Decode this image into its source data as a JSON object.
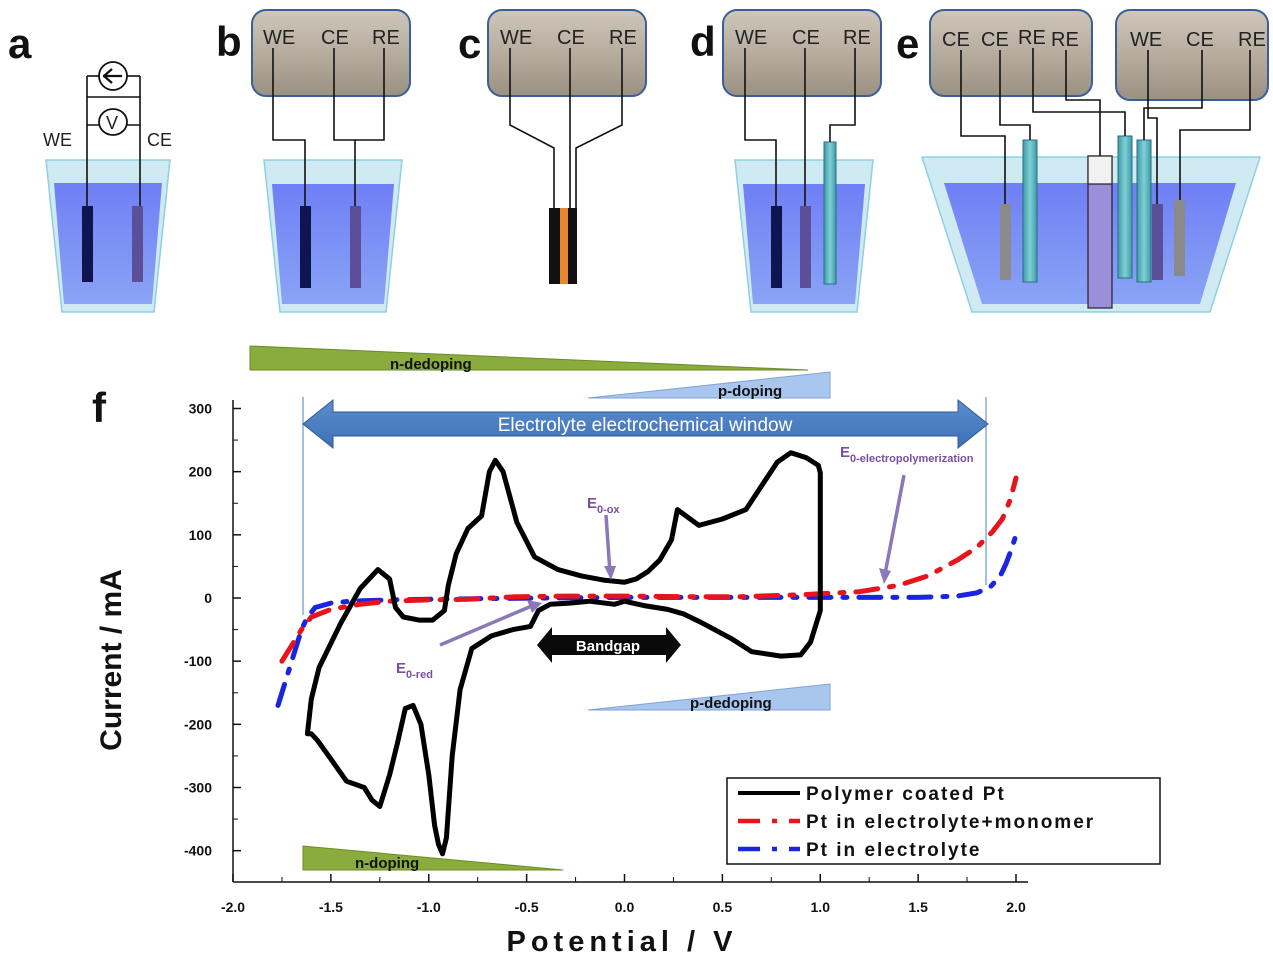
{
  "panels": {
    "a": {
      "letter": "a",
      "we": "WE",
      "ce": "CE",
      "ammeter": "A",
      "voltmeter": "V"
    },
    "b": {
      "letter": "b",
      "labels": [
        "WE",
        "CE",
        "RE"
      ]
    },
    "c": {
      "letter": "c",
      "labels": [
        "WE",
        "CE",
        "RE"
      ]
    },
    "d": {
      "letter": "d",
      "labels": [
        "WE",
        "CE",
        "RE"
      ]
    },
    "e": {
      "letter": "e",
      "labels_left": [
        "CE",
        "CE",
        "RE",
        "RE"
      ],
      "labels_right": [
        "WE",
        "CE",
        "RE"
      ]
    },
    "f": {
      "letter": "f"
    }
  },
  "annotations": {
    "n_dedoping": "n-dedoping",
    "p_doping": "p-doping",
    "p_dedoping": "p-dedoping",
    "n_doping": "n-doping",
    "window": "Electrolyte electrochemical window",
    "bandgap": "Bandgap",
    "e_ox_main": "E",
    "e_ox_sub": "0-ox",
    "e_red_main": "E",
    "e_red_sub": "0-red",
    "e_poly_main": "E",
    "e_poly_sub": "0-electropolymerization"
  },
  "colors": {
    "polymer": "#000000",
    "monomer": "#e8141b",
    "electrolyte": "#1a25e0",
    "window_arrow": "#4a7fc0",
    "green_wedge": "#8aac3c",
    "blue_wedge": "#a8c6ee",
    "device_box": "#b7ad9f",
    "electrolyte_fill": "#7d92f2"
  },
  "chart_data": {
    "type": "line",
    "xlabel": "Potential / V",
    "ylabel": "Current / mA",
    "xlim": [
      -2.0,
      2.2
    ],
    "ylim": [
      -430,
      310
    ],
    "x_ticks": [
      "-2.0",
      "-1.5",
      "-1.0",
      "-0.5",
      "0.0",
      "0.5",
      "1.0",
      "1.5",
      "2.0"
    ],
    "y_ticks": [
      "300",
      "200",
      "100",
      "0",
      "-100",
      "-200",
      "-300",
      "-400"
    ],
    "legend_position": "bottom-right",
    "series": [
      {
        "name": "Polymer coated Pt",
        "style": "solid",
        "x": [
          1.0,
          0.99,
          0.93,
          0.85,
          0.78,
          0.62,
          0.5,
          0.38,
          0.27,
          0.24,
          0.18,
          0.12,
          0.06,
          0.0,
          -0.1,
          -0.22,
          -0.34,
          -0.46,
          -0.55,
          -0.62,
          -0.66,
          -0.69,
          -0.73,
          -0.8,
          -0.86,
          -0.9,
          -0.92,
          -0.98,
          -1.05,
          -1.13,
          -1.17,
          -1.2,
          -1.26,
          -1.35,
          -1.45,
          -1.56,
          -1.6,
          -1.62,
          -1.6,
          -1.57,
          -1.5,
          -1.42,
          -1.33,
          -1.29,
          -1.25,
          -1.2,
          -1.16,
          -1.12,
          -1.08,
          -1.04,
          -1.0,
          -0.97,
          -0.95,
          -0.93,
          -0.91,
          -0.88,
          -0.84,
          -0.78,
          -0.68,
          -0.57,
          -0.48,
          -0.44,
          -0.38,
          -0.28,
          -0.18,
          -0.05,
          0.0,
          0.1,
          0.22,
          0.3,
          0.4,
          0.55,
          0.65,
          0.8,
          0.9,
          0.95,
          1.0,
          1.0
        ],
        "y": [
          198,
          210,
          222,
          230,
          215,
          140,
          125,
          115,
          140,
          92,
          60,
          42,
          30,
          25,
          28,
          35,
          45,
          65,
          120,
          200,
          218,
          200,
          130,
          110,
          70,
          20,
          -20,
          -35,
          -35,
          -30,
          -15,
          30,
          45,
          15,
          -40,
          -110,
          -160,
          -215,
          -215,
          -225,
          -255,
          -290,
          -300,
          -320,
          -330,
          -280,
          -230,
          -175,
          -170,
          -200,
          -280,
          -360,
          -390,
          -405,
          -380,
          -250,
          -145,
          -80,
          -60,
          -50,
          -45,
          -20,
          -10,
          -8,
          -5,
          -10,
          -5,
          -12,
          -18,
          -25,
          -40,
          -65,
          -85,
          -92,
          -90,
          -70,
          -20,
          198
        ]
      },
      {
        "name": "Pt in electrolyte+monomer",
        "style": "dash-dot",
        "x": [
          -1.75,
          -1.72,
          -1.65,
          -1.6,
          -1.5,
          -1.35,
          -1.2,
          -1.0,
          -0.8,
          -0.55,
          -0.3,
          0.0,
          0.3,
          0.6,
          0.9,
          1.2,
          1.4,
          1.55,
          1.7,
          1.8,
          1.88,
          1.93,
          1.97,
          2.0
        ],
        "y": [
          -100,
          -85,
          -50,
          -30,
          -18,
          -10,
          -5,
          -3,
          -2,
          2,
          3,
          3,
          2,
          2,
          5,
          10,
          20,
          35,
          60,
          80,
          105,
          125,
          155,
          190
        ]
      },
      {
        "name": "Pt in electrolyte",
        "style": "dash-dot",
        "x": [
          -1.77,
          -1.74,
          -1.7,
          -1.65,
          -1.62,
          -1.58,
          -1.5,
          -1.4,
          -1.2,
          -1.0,
          -0.7,
          -0.4,
          0.0,
          0.4,
          0.8,
          1.2,
          1.5,
          1.7,
          1.8,
          1.87,
          1.92,
          1.95,
          1.98,
          2.0
        ],
        "y": [
          -170,
          -140,
          -100,
          -50,
          -30,
          -15,
          -8,
          -5,
          -3,
          -2,
          -1,
          0,
          1,
          1,
          1,
          1,
          1,
          3,
          8,
          18,
          35,
          55,
          80,
          100
        ]
      }
    ]
  }
}
